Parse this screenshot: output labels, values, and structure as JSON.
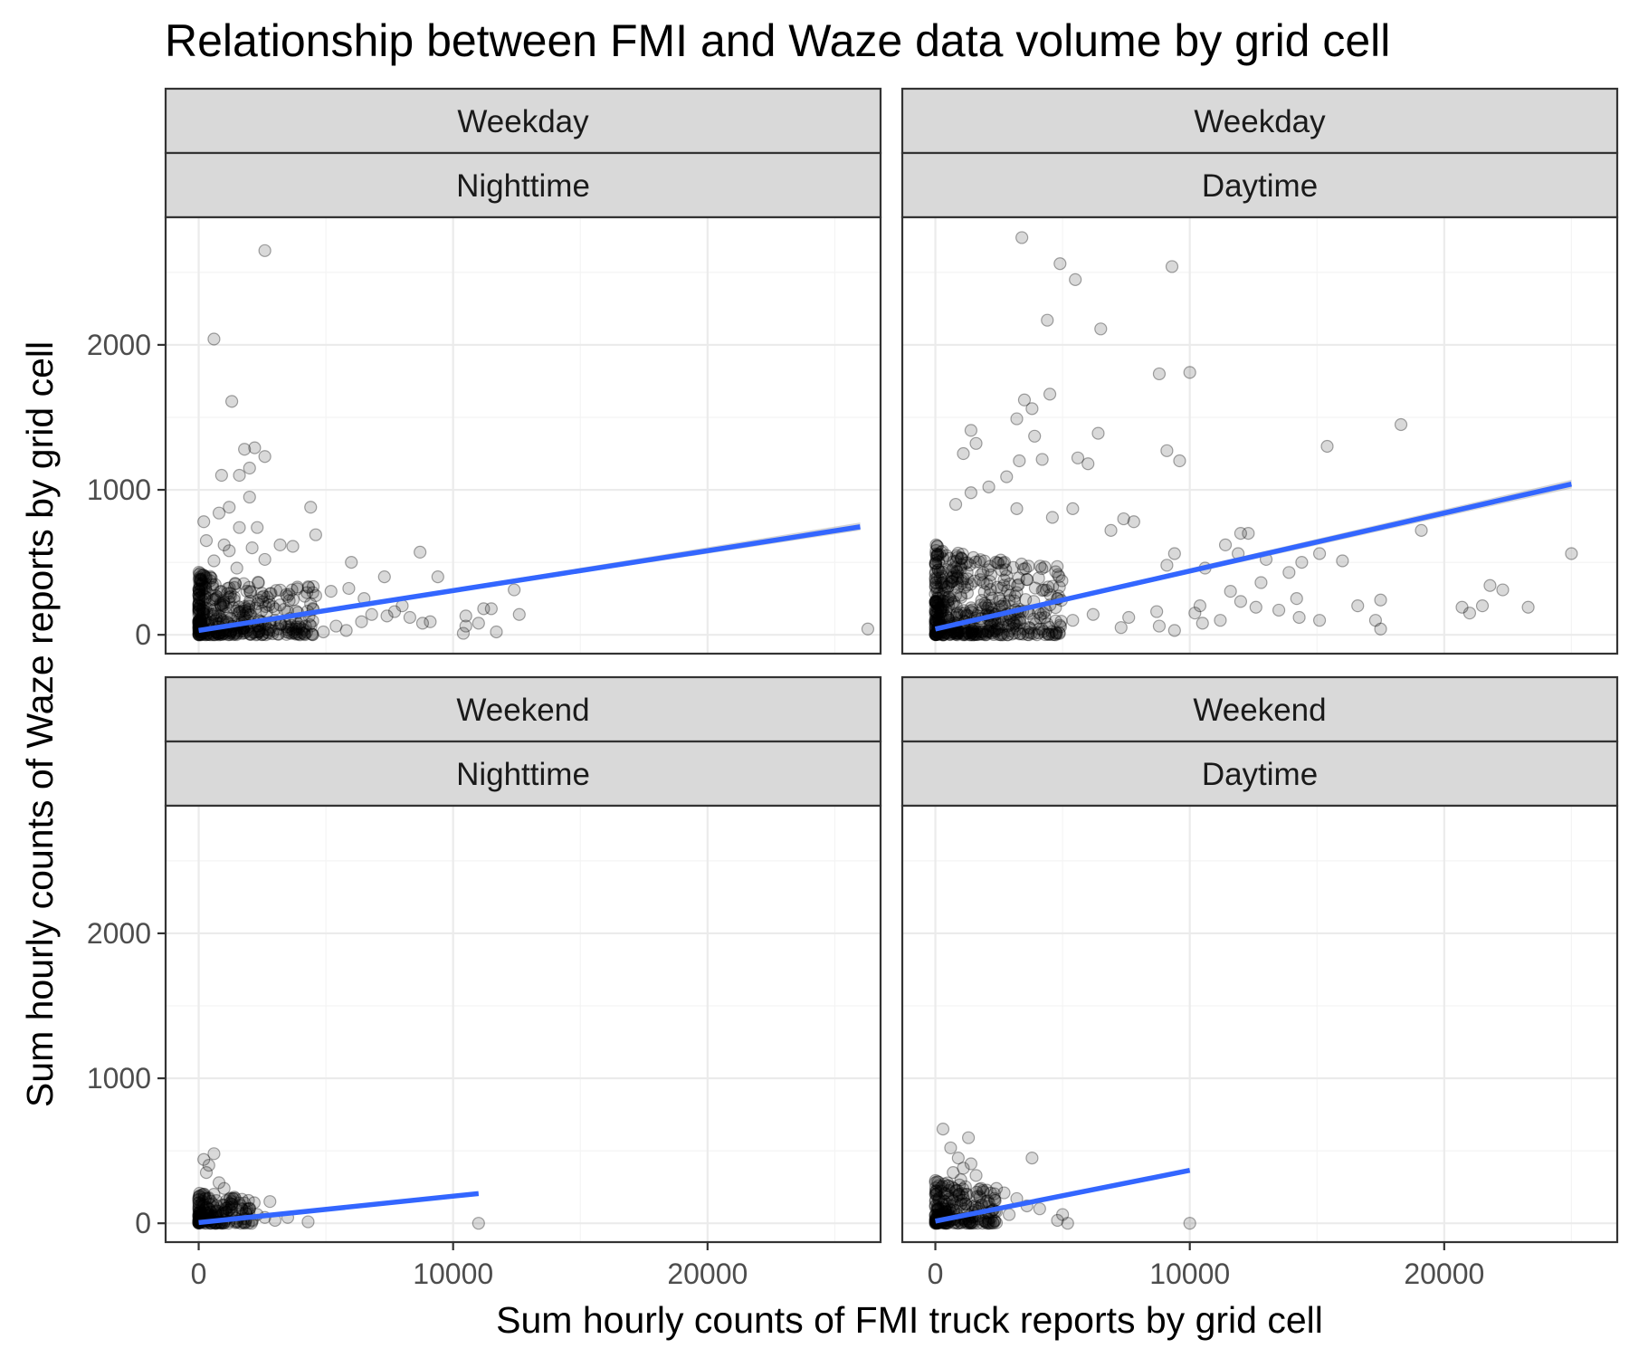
{
  "chart_data": {
    "type": "scatter",
    "title": "Relationship between FMI and Waze data volume by grid cell",
    "xlabel": "Sum hourly counts of FMI truck reports by grid cell",
    "ylabel": "Sum hourly counts of Waze reports by grid cell",
    "xlim": [
      -1300,
      26800
    ],
    "ylim": [
      -130,
      2880
    ],
    "x_ticks": [
      0,
      10000,
      20000
    ],
    "y_ticks": [
      0,
      1000,
      2000
    ],
    "x_tick_labels": [
      "0",
      "10000",
      "20000"
    ],
    "y_tick_labels": [
      "0",
      "1000",
      "2000"
    ],
    "grid": true,
    "point_color": "#000000",
    "point_alpha": 0.15,
    "fit_line_color": "#3366ff",
    "ci_band_color": "#999999",
    "panels": [
      {
        "strip_top": "Weekday",
        "strip_bottom": "Nighttime",
        "fit": {
          "x0": 0,
          "y0": 30,
          "x1": 26000,
          "y1": 745,
          "se_lo": [
            25,
            720
          ],
          "se_hi": [
            35,
            775
          ]
        },
        "points": [
          [
            2600,
            2650
          ],
          [
            600,
            2040
          ],
          [
            1300,
            1610
          ],
          [
            1800,
            1280
          ],
          [
            2200,
            1290
          ],
          [
            2600,
            1230
          ],
          [
            1600,
            1100
          ],
          [
            2000,
            1150
          ],
          [
            900,
            1100
          ],
          [
            2000,
            950
          ],
          [
            800,
            840
          ],
          [
            1200,
            880
          ],
          [
            4400,
            880
          ],
          [
            200,
            780
          ],
          [
            1600,
            740
          ],
          [
            2300,
            740
          ],
          [
            4600,
            690
          ],
          [
            300,
            650
          ],
          [
            1000,
            620
          ],
          [
            3200,
            620
          ],
          [
            3700,
            610
          ],
          [
            1200,
            580
          ],
          [
            2100,
            600
          ],
          [
            8700,
            570
          ],
          [
            600,
            510
          ],
          [
            2600,
            520
          ],
          [
            1500,
            460
          ],
          [
            7300,
            400
          ],
          [
            9400,
            400
          ],
          [
            5900,
            320
          ],
          [
            6000,
            500
          ],
          [
            5200,
            300
          ],
          [
            4600,
            270
          ],
          [
            6500,
            250
          ],
          [
            8000,
            200
          ],
          [
            10500,
            130
          ],
          [
            11200,
            180
          ],
          [
            11500,
            180
          ],
          [
            12400,
            310
          ],
          [
            12600,
            140
          ],
          [
            11000,
            80
          ],
          [
            10500,
            60
          ],
          [
            11700,
            20
          ],
          [
            10400,
            10
          ],
          [
            8300,
            120
          ],
          [
            8800,
            80
          ],
          [
            9100,
            90
          ],
          [
            7400,
            130
          ],
          [
            7700,
            160
          ],
          [
            6800,
            140
          ],
          [
            6400,
            90
          ],
          [
            5800,
            30
          ],
          [
            3500,
            160
          ],
          [
            4900,
            20
          ],
          [
            5400,
            60
          ],
          [
            26300,
            40
          ],
          [
            4200,
            60
          ],
          [
            3000,
            100
          ]
        ],
        "cluster": {
          "xmax": 4500,
          "ymax": 450,
          "count": 420
        }
      },
      {
        "strip_top": "Weekday",
        "strip_bottom": "Daytime",
        "fit": {
          "x0": 0,
          "y0": 40,
          "x1": 25000,
          "y1": 1040,
          "se_lo": [
            30,
            1010
          ],
          "se_hi": [
            50,
            1070
          ]
        },
        "points": [
          [
            3400,
            2740
          ],
          [
            4900,
            2560
          ],
          [
            9300,
            2540
          ],
          [
            5500,
            2450
          ],
          [
            4400,
            2170
          ],
          [
            6500,
            2110
          ],
          [
            8800,
            1800
          ],
          [
            10000,
            1810
          ],
          [
            3500,
            1620
          ],
          [
            3800,
            1560
          ],
          [
            4500,
            1660
          ],
          [
            3200,
            1490
          ],
          [
            18300,
            1450
          ],
          [
            1400,
            1410
          ],
          [
            1600,
            1320
          ],
          [
            1100,
            1250
          ],
          [
            3900,
            1370
          ],
          [
            6400,
            1390
          ],
          [
            9100,
            1270
          ],
          [
            9600,
            1200
          ],
          [
            15400,
            1300
          ],
          [
            5600,
            1220
          ],
          [
            6000,
            1180
          ],
          [
            3300,
            1200
          ],
          [
            4200,
            1210
          ],
          [
            2800,
            1090
          ],
          [
            2100,
            1020
          ],
          [
            5400,
            870
          ],
          [
            3200,
            870
          ],
          [
            800,
            900
          ],
          [
            1400,
            980
          ],
          [
            4600,
            810
          ],
          [
            7400,
            800
          ],
          [
            7800,
            780
          ],
          [
            6900,
            720
          ],
          [
            12000,
            700
          ],
          [
            12300,
            700
          ],
          [
            19100,
            720
          ],
          [
            11400,
            620
          ],
          [
            11900,
            560
          ],
          [
            13000,
            520
          ],
          [
            14400,
            500
          ],
          [
            15100,
            560
          ],
          [
            16000,
            510
          ],
          [
            9100,
            480
          ],
          [
            9400,
            560
          ],
          [
            10600,
            460
          ],
          [
            13900,
            430
          ],
          [
            12800,
            360
          ],
          [
            11600,
            300
          ],
          [
            14200,
            250
          ],
          [
            16600,
            200
          ],
          [
            17500,
            240
          ],
          [
            17300,
            100
          ],
          [
            17500,
            40
          ],
          [
            20700,
            190
          ],
          [
            21000,
            150
          ],
          [
            21500,
            200
          ],
          [
            21800,
            340
          ],
          [
            22300,
            310
          ],
          [
            23300,
            190
          ],
          [
            25000,
            560
          ],
          [
            15100,
            100
          ],
          [
            14300,
            120
          ],
          [
            13500,
            170
          ],
          [
            12600,
            190
          ],
          [
            12000,
            230
          ],
          [
            11200,
            100
          ],
          [
            10200,
            150
          ],
          [
            10500,
            80
          ],
          [
            9400,
            30
          ],
          [
            8800,
            60
          ],
          [
            7300,
            50
          ],
          [
            7600,
            120
          ],
          [
            6200,
            140
          ],
          [
            5400,
            100
          ],
          [
            10400,
            200
          ],
          [
            8700,
            160
          ]
        ],
        "cluster": {
          "xmax": 5000,
          "ymax": 650,
          "count": 520
        }
      },
      {
        "strip_top": "Weekend",
        "strip_bottom": "Nighttime",
        "fit": {
          "x0": 0,
          "y0": 5,
          "x1": 11000,
          "y1": 205,
          "se_lo": [
            2,
            195
          ],
          "se_hi": [
            8,
            215
          ]
        },
        "points": [
          [
            600,
            480
          ],
          [
            200,
            440
          ],
          [
            400,
            400
          ],
          [
            300,
            350
          ],
          [
            800,
            280
          ],
          [
            1000,
            240
          ],
          [
            1800,
            140
          ],
          [
            2800,
            150
          ],
          [
            2000,
            100
          ],
          [
            2300,
            60
          ],
          [
            3000,
            20
          ],
          [
            4300,
            10
          ],
          [
            11000,
            0
          ],
          [
            1400,
            180
          ],
          [
            600,
            200
          ],
          [
            1200,
            90
          ],
          [
            2600,
            40
          ],
          [
            3500,
            40
          ]
        ],
        "cluster": {
          "xmax": 2200,
          "ymax": 220,
          "count": 200
        }
      },
      {
        "strip_top": "Weekend",
        "strip_bottom": "Daytime",
        "fit": {
          "x0": 0,
          "y0": 15,
          "x1": 10000,
          "y1": 365,
          "se_lo": [
            10,
            350
          ],
          "se_hi": [
            20,
            380
          ]
        },
        "points": [
          [
            300,
            650
          ],
          [
            1300,
            590
          ],
          [
            600,
            520
          ],
          [
            900,
            450
          ],
          [
            1400,
            410
          ],
          [
            3800,
            450
          ],
          [
            1100,
            380
          ],
          [
            1600,
            330
          ],
          [
            2400,
            240
          ],
          [
            2700,
            210
          ],
          [
            3200,
            170
          ],
          [
            4100,
            100
          ],
          [
            5000,
            60
          ],
          [
            5200,
            0
          ],
          [
            10000,
            0
          ],
          [
            4800,
            20
          ],
          [
            2000,
            150
          ],
          [
            3600,
            120
          ],
          [
            2900,
            60
          ],
          [
            1800,
            240
          ],
          [
            700,
            350
          ],
          [
            1000,
            300
          ]
        ],
        "cluster": {
          "xmax": 2400,
          "ymax": 320,
          "count": 240
        }
      }
    ]
  }
}
